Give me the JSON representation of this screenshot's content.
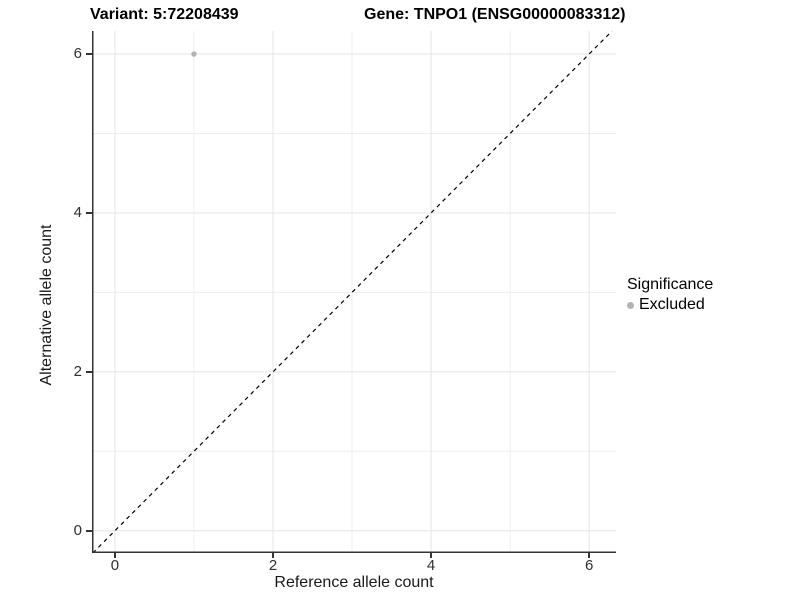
{
  "chart_data": {
    "type": "scatter",
    "title_left": "Variant: 5:72208439",
    "title_right": "Gene: TNPO1 (ENSG00000083312)",
    "xlabel": "Reference allele count",
    "ylabel": "Alternative allele count",
    "xlim": [
      -0.29,
      6.34
    ],
    "ylim": [
      -0.28,
      6.29
    ],
    "x_ticks": [
      0,
      2,
      4,
      6
    ],
    "y_ticks": [
      0,
      2,
      4,
      6
    ],
    "x_minor_gridlines": [
      1,
      3,
      5
    ],
    "y_minor_gridlines": [
      1,
      3,
      5
    ],
    "grid": "on",
    "series": [
      {
        "name": "Excluded",
        "color": "#b3b3b3",
        "points": [
          {
            "x": 1,
            "y": 6
          }
        ]
      }
    ],
    "reference_line": {
      "equation": "y = x",
      "style": "dashed",
      "color": "#000000"
    },
    "legend": {
      "title": "Significance",
      "position": "right-center",
      "items": [
        {
          "label": "Excluded",
          "color": "#b3b3b3"
        }
      ]
    }
  },
  "colors": {
    "background": "#ffffff",
    "grid_major": "#e4e4e4",
    "grid_minor": "#eeeeee",
    "axis_line": "#333333",
    "tick_label": "#303030"
  }
}
